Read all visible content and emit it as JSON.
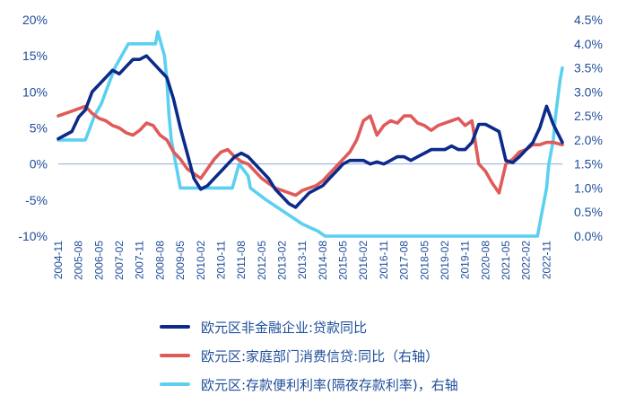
{
  "chart_data": {
    "type": "line",
    "x_start": "2004-11",
    "x_end": "2023-06",
    "x_tick_labels": [
      "2004-11",
      "2005-08",
      "2006-05",
      "2007-02",
      "2007-11",
      "2008-08",
      "2009-05",
      "2010-02",
      "2010-11",
      "2011-08",
      "2012-05",
      "2013-02",
      "2013-11",
      "2014-08",
      "2015-05",
      "2016-02",
      "2016-11",
      "2017-08",
      "2018-05",
      "2019-02",
      "2019-11",
      "2020-08",
      "2021-05",
      "2022-02",
      "2022-11"
    ],
    "y_left": {
      "min": -10,
      "max": 20,
      "step": 5,
      "tick_labels": [
        "-10%",
        "-5%",
        "0%",
        "5%",
        "10%",
        "15%",
        "20%"
      ]
    },
    "y_right": {
      "min": 0.0,
      "max": 4.5,
      "step": 0.5,
      "tick_labels": [
        "0.0%",
        "0.5%",
        "1.0%",
        "1.5%",
        "2.0%",
        "2.5%",
        "3.0%",
        "3.5%",
        "4.0%",
        "4.5%"
      ]
    },
    "series": [
      {
        "name": "欧元区非金融企业:贷款同比",
        "axis": "left",
        "color": "#0B2A8A",
        "x": [
          "2004-11",
          "2005-02",
          "2005-05",
          "2005-08",
          "2005-11",
          "2006-02",
          "2006-05",
          "2006-08",
          "2006-11",
          "2007-02",
          "2007-05",
          "2007-08",
          "2007-11",
          "2008-02",
          "2008-05",
          "2008-08",
          "2008-11",
          "2009-02",
          "2009-05",
          "2009-08",
          "2009-11",
          "2010-02",
          "2010-05",
          "2010-08",
          "2010-11",
          "2011-02",
          "2011-05",
          "2011-08",
          "2011-11",
          "2012-02",
          "2012-05",
          "2012-08",
          "2012-11",
          "2013-02",
          "2013-05",
          "2013-08",
          "2013-11",
          "2014-02",
          "2014-05",
          "2014-08",
          "2014-11",
          "2015-02",
          "2015-05",
          "2015-08",
          "2015-11",
          "2016-02",
          "2016-05",
          "2016-08",
          "2016-11",
          "2017-02",
          "2017-05",
          "2017-08",
          "2017-11",
          "2018-02",
          "2018-05",
          "2018-08",
          "2018-11",
          "2019-02",
          "2019-05",
          "2019-08",
          "2019-11",
          "2020-02",
          "2020-05",
          "2020-08",
          "2020-11",
          "2021-02",
          "2021-05",
          "2021-08",
          "2021-11",
          "2022-02",
          "2022-05",
          "2022-08",
          "2022-11",
          "2023-02",
          "2023-06"
        ],
        "y": [
          3.5,
          4.0,
          4.5,
          6.5,
          7.5,
          10.0,
          11.0,
          12.0,
          13.0,
          12.5,
          13.5,
          14.5,
          14.5,
          15.0,
          14.0,
          13.0,
          12.0,
          9.0,
          5.0,
          1.5,
          -2.0,
          -3.5,
          -3.0,
          -2.0,
          -1.0,
          0.0,
          1.0,
          1.5,
          1.0,
          0.0,
          -1.0,
          -2.0,
          -3.5,
          -4.5,
          -5.5,
          -6.0,
          -5.0,
          -4.0,
          -3.5,
          -3.0,
          -2.0,
          -1.0,
          0.0,
          0.5,
          0.5,
          0.5,
          0.0,
          0.3,
          0.0,
          0.5,
          1.0,
          1.0,
          0.5,
          1.0,
          1.5,
          2.0,
          2.0,
          2.0,
          2.5,
          2.0,
          2.0,
          3.0,
          5.5,
          5.5,
          5.0,
          4.5,
          0.5,
          0.2,
          1.0,
          2.0,
          3.0,
          5.0,
          8.0,
          5.5,
          3.0
        ]
      },
      {
        "name": "欧元区:家庭部门消费信贷:同比（右轴）",
        "axis": "right",
        "color": "#E05A5A",
        "x": [
          "2004-11",
          "2005-02",
          "2005-05",
          "2005-08",
          "2005-11",
          "2006-02",
          "2006-05",
          "2006-08",
          "2006-11",
          "2007-02",
          "2007-05",
          "2007-08",
          "2007-11",
          "2008-02",
          "2008-05",
          "2008-08",
          "2008-11",
          "2009-02",
          "2009-05",
          "2009-08",
          "2009-11",
          "2010-02",
          "2010-05",
          "2010-08",
          "2010-11",
          "2011-02",
          "2011-05",
          "2011-08",
          "2011-11",
          "2012-02",
          "2012-05",
          "2012-08",
          "2012-11",
          "2013-02",
          "2013-05",
          "2013-08",
          "2013-11",
          "2014-02",
          "2014-05",
          "2014-08",
          "2014-11",
          "2015-02",
          "2015-05",
          "2015-08",
          "2015-11",
          "2016-02",
          "2016-05",
          "2016-08",
          "2016-11",
          "2017-02",
          "2017-05",
          "2017-08",
          "2017-11",
          "2018-02",
          "2018-05",
          "2018-08",
          "2018-11",
          "2019-02",
          "2019-05",
          "2019-08",
          "2019-11",
          "2020-02",
          "2020-05",
          "2020-08",
          "2020-11",
          "2021-02",
          "2021-05",
          "2021-08",
          "2021-11",
          "2022-02",
          "2022-05",
          "2022-08",
          "2022-11",
          "2023-02",
          "2023-06"
        ],
        "y": [
          2.5,
          2.55,
          2.6,
          2.65,
          2.7,
          2.55,
          2.45,
          2.4,
          2.3,
          2.25,
          2.15,
          2.1,
          2.2,
          2.35,
          2.3,
          2.1,
          2.0,
          1.75,
          1.6,
          1.4,
          1.3,
          1.2,
          1.4,
          1.6,
          1.75,
          1.8,
          1.65,
          1.55,
          1.5,
          1.35,
          1.2,
          1.1,
          1.0,
          0.95,
          0.9,
          0.85,
          0.95,
          1.0,
          1.05,
          1.15,
          1.3,
          1.45,
          1.6,
          1.75,
          2.0,
          2.4,
          2.5,
          2.1,
          2.3,
          2.4,
          2.35,
          2.5,
          2.5,
          2.35,
          2.3,
          2.2,
          2.3,
          2.35,
          2.4,
          2.45,
          2.3,
          2.4,
          1.5,
          1.35,
          1.1,
          0.9,
          1.5,
          1.6,
          1.75,
          1.8,
          1.9,
          1.9,
          1.95,
          1.95,
          1.9
        ]
      },
      {
        "name": "欧元区:存款便利利率(隔夜存款利率)，右轴",
        "axis": "right",
        "color": "#5CD0F0",
        "x": [
          "2004-11",
          "2005-11",
          "2006-01",
          "2006-03",
          "2006-06",
          "2006-08",
          "2006-10",
          "2006-12",
          "2007-03",
          "2007-06",
          "2008-06",
          "2008-07",
          "2008-10",
          "2008-11",
          "2008-12",
          "2009-01",
          "2009-03",
          "2009-04",
          "2009-05",
          "2011-04",
          "2011-07",
          "2011-11",
          "2011-12",
          "2012-07",
          "2013-11",
          "2014-06",
          "2014-09",
          "2019-09",
          "2022-07",
          "2022-09",
          "2022-11",
          "2022-12",
          "2023-02",
          "2023-03",
          "2023-05",
          "2023-06"
        ],
        "y": [
          2.0,
          2.0,
          2.25,
          2.5,
          2.75,
          3.0,
          3.25,
          3.5,
          3.75,
          4.0,
          4.0,
          4.25,
          3.75,
          3.25,
          2.5,
          2.0,
          1.5,
          1.25,
          1.0,
          1.0,
          1.5,
          1.25,
          1.0,
          0.75,
          0.25,
          0.1,
          0.0,
          0.0,
          0.0,
          0.5,
          1.0,
          1.5,
          2.0,
          2.5,
          3.25,
          3.5
        ]
      }
    ]
  }
}
